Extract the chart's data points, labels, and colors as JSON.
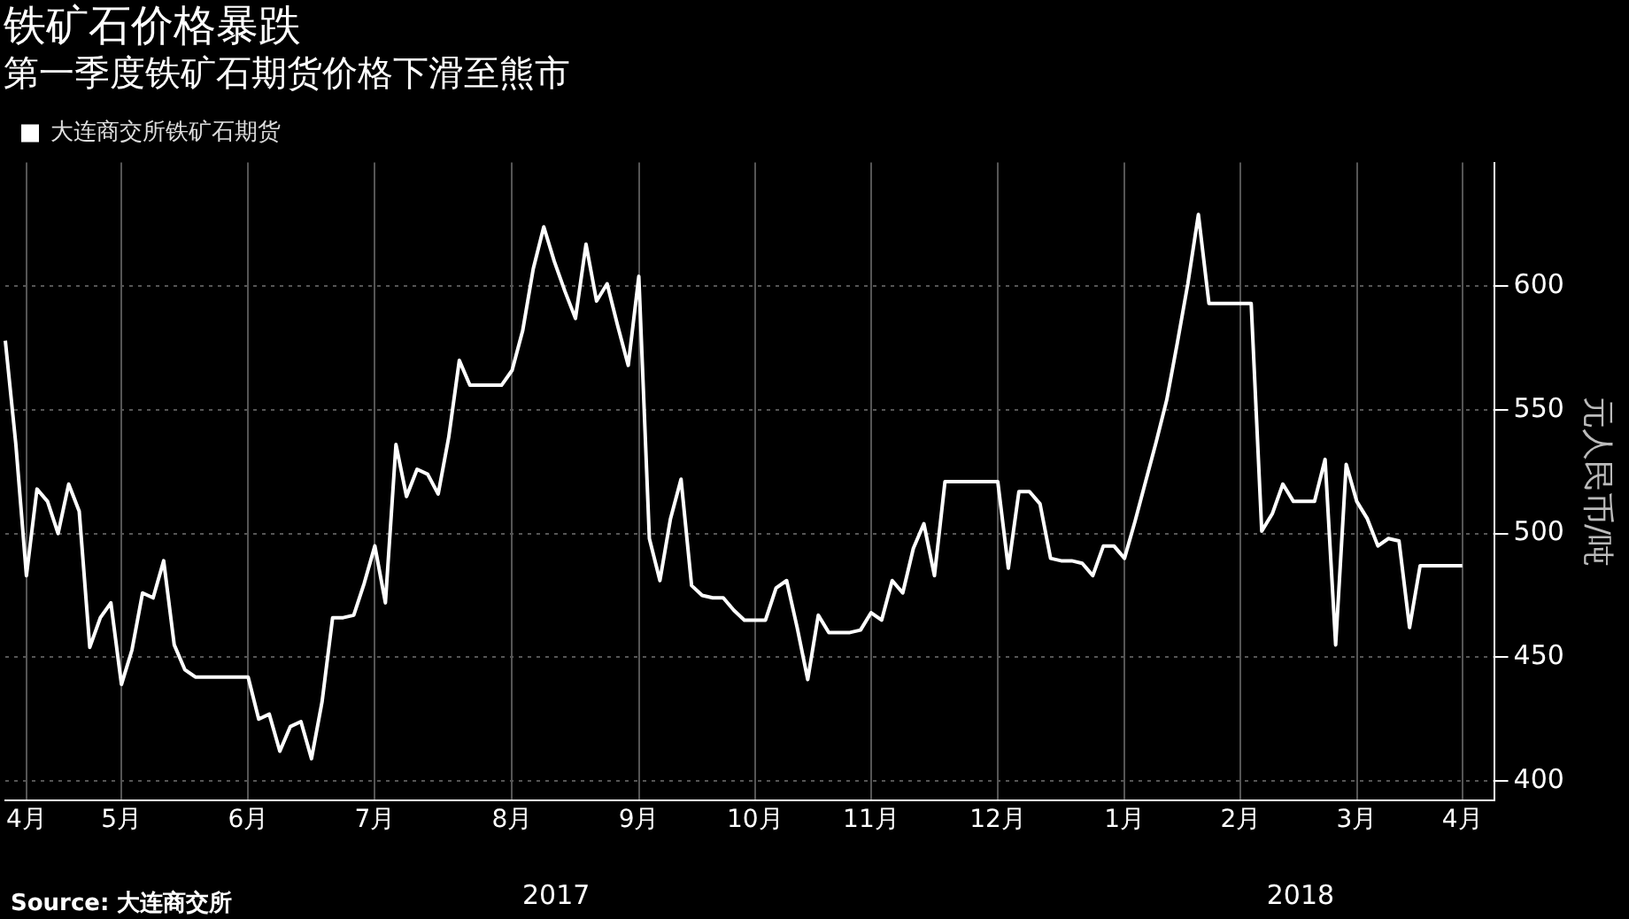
{
  "chart_data": {
    "type": "line",
    "title": "铁矿石价格暴跌",
    "subtitle": "第一季度铁矿石期货价格下滑至熊市",
    "ylabel": "元人民币/吨",
    "categories": [
      null,
      null,
      "4月",
      null,
      null,
      null,
      null,
      null,
      null,
      null,
      null,
      "5月",
      null,
      null,
      null,
      null,
      null,
      null,
      null,
      null,
      null,
      null,
      null,
      "6月",
      null,
      null,
      null,
      null,
      null,
      null,
      null,
      null,
      null,
      null,
      null,
      "7月",
      null,
      null,
      null,
      null,
      null,
      null,
      null,
      null,
      null,
      null,
      null,
      null,
      "8月",
      null,
      null,
      null,
      null,
      null,
      null,
      null,
      null,
      null,
      null,
      null,
      "9月",
      null,
      null,
      null,
      null,
      null,
      null,
      null,
      null,
      null,
      null,
      "10月",
      null,
      null,
      null,
      null,
      null,
      null,
      null,
      null,
      null,
      null,
      "11月",
      null,
      null,
      null,
      null,
      null,
      null,
      null,
      null,
      null,
      null,
      null,
      "12月",
      null,
      null,
      null,
      null,
      null,
      null,
      null,
      null,
      null,
      null,
      null,
      "1月",
      null,
      null,
      null,
      null,
      null,
      null,
      null,
      null,
      null,
      null,
      "2月",
      null,
      null,
      null,
      null,
      null,
      null,
      null,
      null,
      null,
      null,
      "3月",
      null,
      null,
      null,
      null,
      null,
      null,
      null,
      null,
      null,
      "4月",
      null,
      null,
      null
    ],
    "series": [
      {
        "name": "大连商交所铁矿石期货",
        "color": "#ffffff",
        "values": [
          578,
          536,
          483,
          518,
          513,
          500,
          520,
          509,
          454,
          466,
          472,
          439,
          453,
          476,
          474,
          489,
          455,
          445,
          442,
          442,
          442,
          442,
          442,
          442,
          425,
          427,
          412,
          422,
          424,
          409,
          432,
          466,
          466,
          467,
          480,
          495,
          472,
          536,
          515,
          526,
          524,
          516,
          539,
          570,
          560,
          560,
          560,
          560,
          566,
          582,
          607,
          624,
          610,
          598,
          587,
          617,
          594,
          601,
          584,
          568,
          604,
          498,
          481,
          506,
          522,
          479,
          475,
          474,
          474,
          469,
          465,
          465,
          465,
          478,
          481,
          462,
          441,
          467,
          460,
          460,
          460,
          461,
          468,
          465,
          481,
          476,
          494,
          504,
          483,
          521,
          521,
          521,
          521,
          521,
          521,
          486,
          517,
          517,
          512,
          490,
          489,
          489,
          488,
          483,
          495,
          495,
          490,
          505,
          521,
          537,
          554,
          577,
          601,
          629,
          593,
          593,
          593,
          593,
          593,
          501,
          508,
          520,
          513,
          513,
          513,
          530,
          455,
          528,
          513,
          506,
          495,
          498,
          497,
          462,
          487,
          487,
          487,
          487,
          487,
          null,
          null,
          null
        ]
      }
    ],
    "ylim": [
      392,
      650
    ],
    "yticks": [
      400,
      450,
      500,
      550,
      600
    ],
    "grid": true,
    "legend": "top left",
    "marker": "none",
    "line_style": "solid",
    "annotations": [
      "2017",
      "2018",
      "Source: 大连商交所"
    ]
  }
}
